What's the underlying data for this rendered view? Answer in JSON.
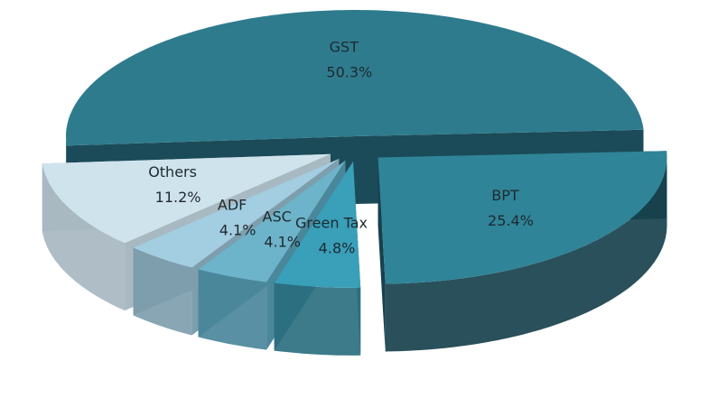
{
  "chart_data": {
    "type": "pie",
    "categories": [
      "BPT",
      "Green Tax",
      "ASC",
      "ADF",
      "Others",
      "GST"
    ],
    "values": [
      25.4,
      4.8,
      4.1,
      4.1,
      11.2,
      50.3
    ],
    "value_labels": [
      "25.4%",
      "4.8%",
      "4.1%",
      "4.1%",
      "11.2%",
      "50.3%"
    ],
    "colors": [
      "#2f8498",
      "#3a9fb8",
      "#6db3c9",
      "#a3cde0",
      "#cfe3ed",
      "#2f7b8e"
    ],
    "side_colors": [
      "#17414d",
      "#2c6f80",
      "#4b879b",
      "#7e9eac",
      "#a8b9c1",
      "#1b4b58"
    ]
  }
}
